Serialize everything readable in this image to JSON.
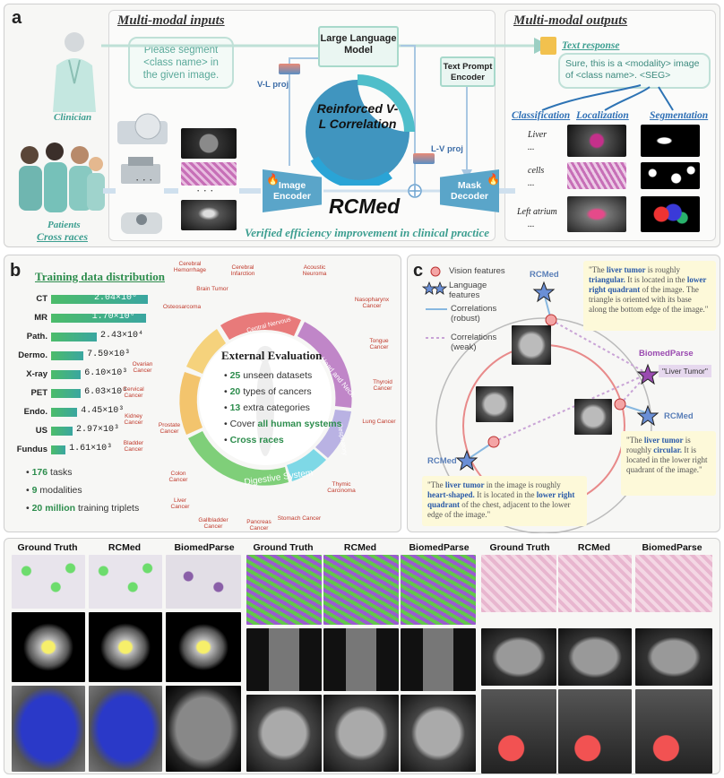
{
  "panel_a": {
    "letter": "a",
    "inputs_title": "Multi-modal inputs",
    "outputs_title": "Multi-modal outputs",
    "clinician": "Clinician",
    "patients": "Patients",
    "cross_races": "Cross races",
    "prompt_bubble": "Please segment <class name> in the given image.",
    "llm": "Large Language Model",
    "tpe": "Text Prompt Encoder",
    "vl_proj": "V-L proj",
    "lv_proj": "L-V proj",
    "center_text": "Reinforced V-L Correlation",
    "image_encoder": "Image Encoder",
    "mask_decoder": "Mask Decoder",
    "model_name": "RCMed",
    "dots": "· · ·",
    "verified": "Verified efficiency improvement in clinical practice",
    "text_response_title": "Text response",
    "text_response": "Sure, this is a <modality> image of <class name>. <SEG>",
    "classification": "Classification",
    "localization": "Localization",
    "segmentation": "Segmentation",
    "row_labels": [
      "Liver",
      "...",
      "cells",
      "...",
      "Left atrium",
      "..."
    ]
  },
  "panel_b": {
    "letter": "b",
    "title": "Training data distribution",
    "bars": [
      {
        "name": "CT",
        "label": "2.04×10⁶",
        "value": 2040000
      },
      {
        "name": "MR",
        "label": "1.70×10⁶",
        "value": 1700000
      },
      {
        "name": "Path.",
        "label": "2.43×10⁴",
        "value": 24300
      },
      {
        "name": "Dermo.",
        "label": "7.59×10³",
        "value": 7590
      },
      {
        "name": "X-ray",
        "label": "6.10×10³",
        "value": 6100
      },
      {
        "name": "PET",
        "label": "6.03×10³",
        "value": 6030
      },
      {
        "name": "Endo.",
        "label": "4.45×10³",
        "value": 4450
      },
      {
        "name": "US",
        "label": "2.97×10³",
        "value": 2970
      },
      {
        "name": "Fundus",
        "label": "1.61×10³",
        "value": 1610
      }
    ],
    "stats": [
      {
        "num": "176",
        "text": " tasks"
      },
      {
        "num": "9",
        "text": " modalities"
      },
      {
        "num": "20 million",
        "text": " training triplets"
      }
    ],
    "eval_title": "External Evaluation",
    "eval_items": [
      {
        "num": "25",
        "text": " unseen datasets"
      },
      {
        "num": "20",
        "text": " types of cancers"
      },
      {
        "num": "13",
        "text": " extra categories"
      },
      {
        "pre": "Cover ",
        "num": "all human systems"
      },
      {
        "num": "Cross races"
      }
    ],
    "systems": [
      "Central Nervous System",
      "Head and Neck",
      "Respiratory System",
      "Circulatory System",
      "Digestive System",
      "Urinary and Reproductive System",
      "Musculoskeletal System"
    ],
    "cancers": [
      "Cerebral Hemorrhage",
      "Cerebral Infarction",
      "Brain Tumor",
      "Acoustic Neuroma",
      "Nasopharynx Cancer",
      "Tongue Cancer",
      "Thyroid Cancer",
      "Lung Cancer",
      "Thymic Carcinoma",
      "Stomach Cancer",
      "Pancreas Cancer",
      "Gallbladder Cancer",
      "Liver Cancer",
      "Colon Cancer",
      "Bladder Cancer",
      "Prostate Cancer",
      "Kidney Cancer",
      "Cervical Cancer",
      "Ovarian Cancer",
      "Osteosarcoma"
    ]
  },
  "panel_c": {
    "letter": "c",
    "legend": {
      "vision": "Vision features",
      "language": "Language features",
      "robust": "Correlations (robust)",
      "weak": "Correlations (weak)"
    },
    "rcmed": "RCMed",
    "biomedparse": "BiomedParse",
    "liver_tumor_tag": "\"Liver Tumor\"",
    "quote_top": {
      "pre": "\"The ",
      "b1": "liver tumor",
      "mid1": " is roughly ",
      "b2": "triangular.",
      "mid2": " It is located in the ",
      "b3": "lower right quadrant",
      "post": " of the image. The triangle is oriented with its base along the bottom edge of the image.\""
    },
    "quote_right": {
      "pre": "\"The ",
      "b1": "liver tumor",
      "mid1": " is roughly ",
      "b2": "circular.",
      "post": " It is located in the lower right quadrant of the image.\""
    },
    "quote_bottom": {
      "pre": "\"The ",
      "b1": "liver tumor",
      "mid1": " in the image is roughly ",
      "b2": "heart-shaped.",
      "mid2": " It is located in the ",
      "b3": "lower right quadrant",
      "post": " of the chest, adjacent to the lower edge of the image.\""
    }
  },
  "panel_d": {
    "headers": [
      "Ground Truth",
      "RCMed",
      "BiomedParse",
      "Ground Truth",
      "RCMed",
      "BiomedParse",
      "Ground Truth",
      "RCMed",
      "BiomedParse"
    ]
  },
  "colors": {
    "teal": "#3c9e90",
    "blue_encoder": "#5aa5c9",
    "green_bar": "#4cbc6a",
    "pink_ring": "#e88a8a"
  }
}
